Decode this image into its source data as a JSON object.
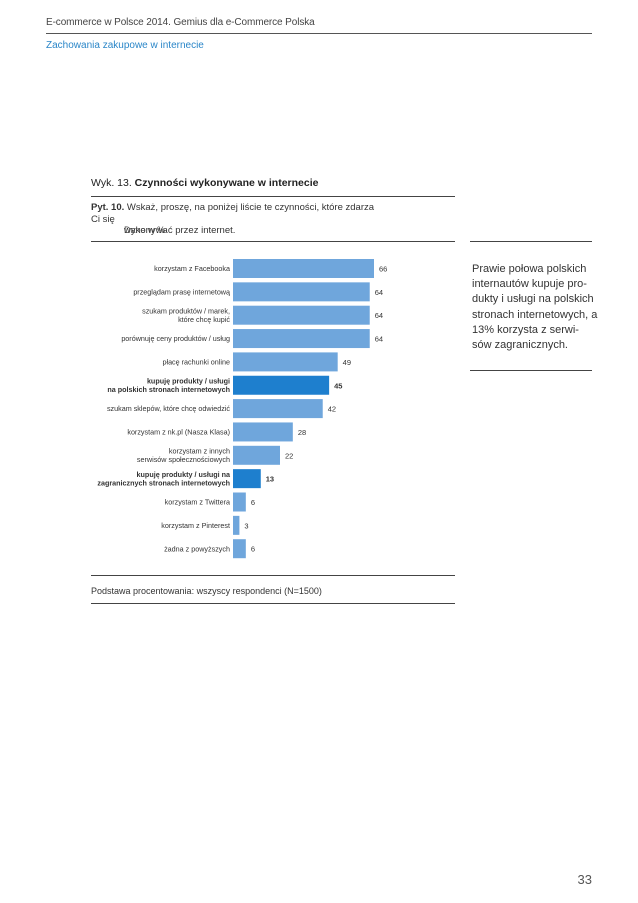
{
  "header": {
    "title": "E-commerce w Polsce 2014. Gemius dla e-Commerce Polska",
    "subtitle": "Zachowania zakupowe w internecie"
  },
  "chart": {
    "label_prefix": "Wyk. 13.",
    "label_title": "Czynności wykonywane w internecie",
    "question_num": "Pyt. 10.",
    "question_line1": "Wskaż, proszę, na poniżej liście te czynności, które zdarza Ci się",
    "question_line2": "wykonywać przez internet.",
    "unit_note": "Dane w %",
    "footnote": "Podstawa procentowania: wszyscy respondenci (N=1500)"
  },
  "side_note": "Prawie połowa polskich internautów kupuje pro-dukty i usługi na polskich stronach internetowych, a 13% korzysta z serwi-sów zagranicznych.",
  "page_number": "33",
  "chart_data": {
    "type": "bar",
    "orientation": "horizontal",
    "categories": [
      [
        "korzystam z Facebooka"
      ],
      [
        "przeglądam prasę internetową"
      ],
      [
        "szukam produktów / marek,",
        "które chcę kupić"
      ],
      [
        "porównuję ceny produktów / usług"
      ],
      [
        "płacę rachunki online"
      ],
      [
        "kupuję produkty / usługi",
        "na polskich stronach internetowych"
      ],
      [
        "szukam sklepów, które chcę odwiedzić"
      ],
      [
        "korzystam z nk.pl (Nasza Klasa)"
      ],
      [
        "korzystam z innych",
        "serwisów społecznościowych"
      ],
      [
        "kupuję produkty / usługi na",
        "zagranicznych stronach internetowych"
      ],
      [
        "korzystam z Twittera"
      ],
      [
        "korzystam z Pinterest"
      ],
      [
        "żadna z powyższych"
      ]
    ],
    "values": [
      66,
      64,
      64,
      64,
      49,
      45,
      42,
      28,
      22,
      13,
      6,
      3,
      6
    ],
    "highlighted": [
      false,
      false,
      false,
      false,
      false,
      true,
      false,
      false,
      false,
      true,
      false,
      false,
      false
    ],
    "colors": {
      "bar": "#6fa6dc",
      "highlight": "#1e7fce"
    },
    "xlim": [
      0,
      70
    ]
  }
}
